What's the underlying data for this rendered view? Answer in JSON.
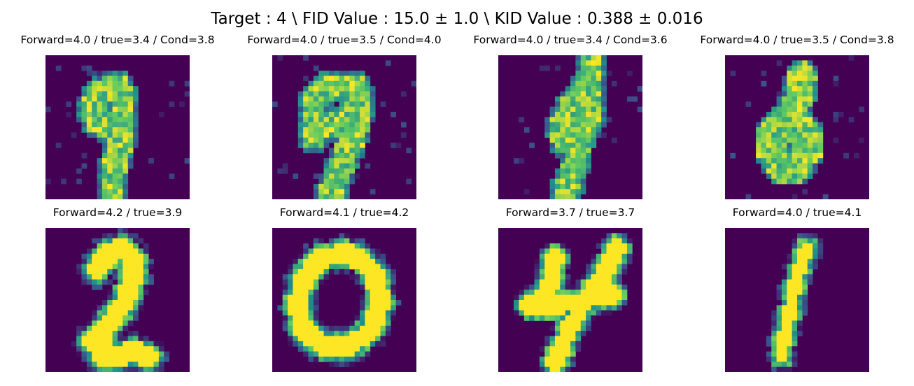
{
  "figure": {
    "suptitle": "Target : 4 \\ FID Value : 15.0 ± 1.0 \\ KID Value : 0.388  ± 0.016",
    "colormap": {
      "background": "#440154",
      "low": "#31688e",
      "mid": "#35b779",
      "high": "#fde725"
    }
  },
  "panels": [
    {
      "title": "Forward=4.0 / true=3.4 / Cond=3.8",
      "image_type": "generated digit (noisy)"
    },
    {
      "title": "Forward=4.0 / true=3.5 / Cond=4.0",
      "image_type": "generated digit (noisy)"
    },
    {
      "title": "Forward=4.0 / true=3.4 / Cond=3.6",
      "image_type": "generated digit (noisy)"
    },
    {
      "title": "Forward=4.0 / true=3.5 / Cond=3.8",
      "image_type": "generated digit (noisy)"
    },
    {
      "title": "Forward=4.2 / true=3.9",
      "image_type": "handwritten digit 2"
    },
    {
      "title": "Forward=4.1 / true=4.2",
      "image_type": "handwritten digit 0"
    },
    {
      "title": "Forward=3.7 / true=3.7",
      "image_type": "handwritten digit 4"
    },
    {
      "title": "Forward=4.0 / true=4.1",
      "image_type": "handwritten digit 1"
    }
  ]
}
